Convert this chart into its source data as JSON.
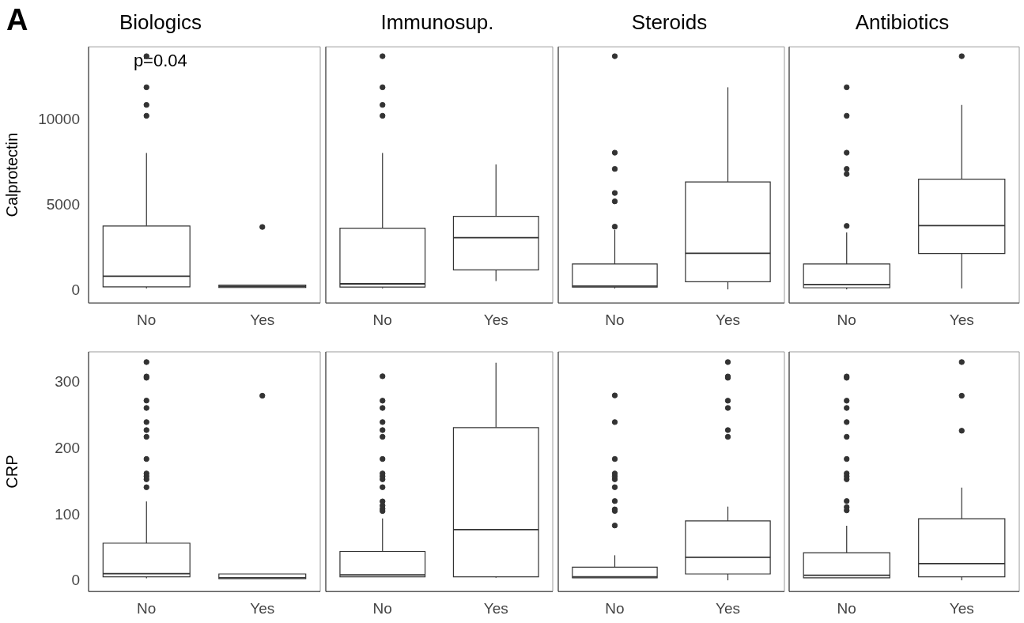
{
  "chart_data": [
    {
      "type": "box",
      "title": "Biologics",
      "ylabel": "Calprotectin",
      "annotations": [
        "A",
        "p=0.04"
      ],
      "categories": [
        "No",
        "Yes"
      ],
      "ylim": [
        -700,
        14300
      ],
      "yticks": [
        0,
        5000,
        10000
      ],
      "boxes": [
        {
          "low": 150,
          "q1": 245,
          "median": 865,
          "q3": 3810,
          "high": 8080,
          "outliers": [
            13750,
            11930,
            10900,
            10260
          ]
        },
        {
          "low": 200,
          "q1": 200,
          "median": 270,
          "q3": 350,
          "high": 350,
          "outliers": [
            3750
          ]
        }
      ]
    },
    {
      "type": "box",
      "title": "Immunosup.",
      "categories": [
        "No",
        "Yes"
      ],
      "ylim": [
        -700,
        14300
      ],
      "yticks": [
        0,
        5000,
        10000
      ],
      "tick_labels": "x",
      "boxes": [
        {
          "low": 150,
          "q1": 225,
          "median": 420,
          "q3": 3680,
          "high": 8080,
          "outliers": [
            13750,
            11930,
            10900,
            10260
          ]
        },
        {
          "low": 585,
          "q1": 1240,
          "median": 3120,
          "q3": 4370,
          "high": 7410
        }
      ]
    },
    {
      "type": "box",
      "title": "Steroids",
      "categories": [
        "No",
        "Yes"
      ],
      "ylim": [
        -700,
        14300
      ],
      "yticks": [
        0,
        5000,
        10000
      ],
      "tick_labels": "x",
      "boxes": [
        {
          "low": 150,
          "q1": 230,
          "median": 285,
          "q3": 1580,
          "high": 3580,
          "outliers": [
            13750,
            8100,
            7150,
            5740,
            5250,
            3770
          ]
        },
        {
          "low": 95,
          "q1": 545,
          "median": 2210,
          "q3": 6390,
          "high": 11930
        }
      ]
    },
    {
      "type": "box",
      "title": "Antibiotics",
      "categories": [
        "No",
        "Yes"
      ],
      "ylim": [
        -700,
        14300
      ],
      "yticks": [
        0,
        5000,
        10000
      ],
      "tick_labels": "x",
      "boxes": [
        {
          "low": 95,
          "q1": 190,
          "median": 380,
          "q3": 1580,
          "high": 3430,
          "outliers": [
            11930,
            10260,
            8100,
            7150,
            6850,
            3810
          ]
        },
        {
          "low": 150,
          "q1": 2200,
          "median": 3830,
          "q3": 6550,
          "high": 10900,
          "outliers": [
            13750
          ]
        }
      ]
    },
    {
      "type": "box",
      "ylabel": "CRP",
      "categories": [
        "No",
        "Yes"
      ],
      "ylim": [
        -16,
        347
      ],
      "yticks": [
        0,
        100,
        200,
        300
      ],
      "boxes": [
        {
          "low": 4,
          "q1": 6.3,
          "median": 11.1,
          "q3": 57.3,
          "high": 120.5,
          "outliers": [
            331.5,
            309.7,
            307.7,
            273.2,
            262,
            240.6,
            228.5,
            218.3,
            184.7,
            162.8,
            158.5,
            154,
            141.9
          ]
        },
        {
          "low": 3.4,
          "q1": 3.4,
          "median": 4.8,
          "q3": 10.6,
          "high": 10.6,
          "outliers": [
            280.5
          ]
        }
      ]
    },
    {
      "type": "box",
      "categories": [
        "No",
        "Yes"
      ],
      "ylim": [
        -16,
        347
      ],
      "yticks": [
        0,
        100,
        200,
        300
      ],
      "tick_labels": "x",
      "boxes": [
        {
          "low": 6.3,
          "q1": 6.3,
          "median": 9.2,
          "q3": 44.7,
          "high": 94.8,
          "outliers": [
            310,
            273,
            262,
            240.6,
            228.5,
            218.3,
            184.7,
            162.8,
            158.5,
            154,
            142,
            120.5,
            114.2,
            109.3,
            105.9
          ]
        },
        {
          "low": 5,
          "q1": 6.3,
          "median": 77.7,
          "q3": 232.3,
          "high": 330.6
        }
      ]
    },
    {
      "type": "box",
      "categories": [
        "No",
        "Yes"
      ],
      "ylim": [
        -16,
        347
      ],
      "yticks": [
        0,
        100,
        200,
        300
      ],
      "tick_labels": "x",
      "boxes": [
        {
          "low": 4.8,
          "q1": 4.8,
          "median": 6.3,
          "q3": 20.9,
          "high": 38.9,
          "outliers": [
            281,
            240.6,
            184.7,
            162.8,
            158.5,
            154,
            142,
            121,
            108.4,
            106,
            84
          ]
        },
        {
          "low": 1,
          "q1": 10.6,
          "median": 35.9,
          "q3": 90.9,
          "high": 112.7,
          "outliers": [
            331.5,
            309.7,
            307.7,
            273,
            262,
            228.5,
            218.3
          ]
        }
      ]
    },
    {
      "type": "box",
      "categories": [
        "No",
        "Yes"
      ],
      "ylim": [
        -16,
        347
      ],
      "yticks": [
        0,
        100,
        200,
        300
      ],
      "tick_labels": "x",
      "boxes": [
        {
          "low": 4.8,
          "q1": 4.8,
          "median": 8.7,
          "q3": 42.7,
          "high": 83.6,
          "outliers": [
            309.7,
            307.7,
            273,
            262,
            240.6,
            218.3,
            184.7,
            162.8,
            158.5,
            154,
            121,
            111.8,
            106.9
          ]
        },
        {
          "low": 1,
          "q1": 6.3,
          "median": 26.2,
          "q3": 94.3,
          "high": 141.4,
          "outliers": [
            331.5,
            280.5,
            227.5
          ]
        }
      ]
    }
  ]
}
